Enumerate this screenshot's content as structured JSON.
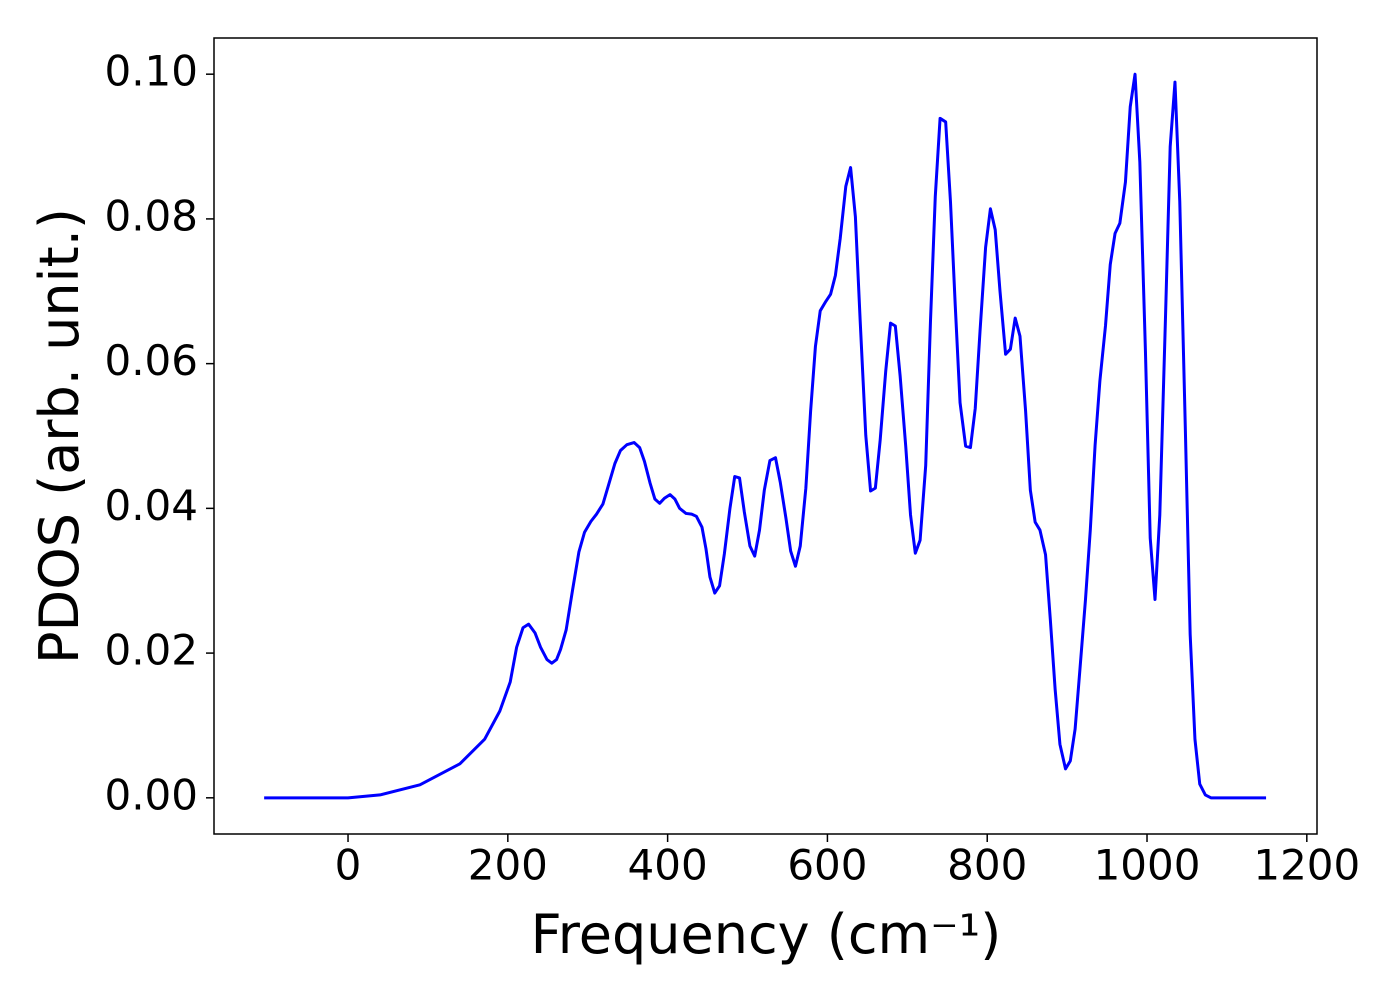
{
  "chart_data": {
    "type": "line",
    "xlabel": "Frequency (cm⁻¹)",
    "ylabel": "PDOS (arb. unit.)",
    "xlim": [
      -167.75,
      1212.75
    ],
    "ylim": [
      -0.005,
      0.105
    ],
    "xticks": [
      0,
      200,
      400,
      600,
      800,
      1000,
      1200
    ],
    "yticks": [
      {
        "value": 0,
        "label": "0.00"
      },
      {
        "value": 0.02,
        "label": "0.02"
      },
      {
        "value": 0.04,
        "label": "0.04"
      },
      {
        "value": 0.06,
        "label": "0.06"
      },
      {
        "value": 0.08,
        "label": "0.08"
      },
      {
        "value": 0.1,
        "label": "0.10"
      }
    ],
    "grid": false,
    "series": [
      {
        "color": "#0000ff",
        "x": [
          -105,
          0,
          40,
          90,
          140,
          171,
          190,
          203,
          211,
          219,
          226,
          234,
          241,
          249,
          255,
          261,
          266,
          273,
          281,
          289,
          296,
          304,
          311,
          319,
          326,
          334,
          341,
          349,
          358,
          365,
          371,
          378,
          384,
          390,
          396,
          403,
          409,
          415,
          423,
          430,
          436,
          443,
          448,
          453,
          459,
          465,
          471,
          478,
          484,
          490,
          496,
          503,
          509,
          515,
          521,
          528,
          535,
          541,
          548,
          554,
          560,
          566,
          573,
          579,
          585,
          591,
          598,
          604,
          610,
          616,
          623,
          629,
          635,
          641,
          648,
          654,
          660,
          666,
          673,
          679,
          685,
          691,
          698,
          704,
          710,
          716,
          723,
          729,
          735,
          741,
          748,
          754,
          760,
          766,
          773,
          779,
          785,
          791,
          798,
          804,
          810,
          816,
          823,
          829,
          835,
          841,
          848,
          854,
          860,
          866,
          873,
          879,
          885,
          891,
          898,
          904,
          910,
          916,
          923,
          929,
          935,
          941,
          948,
          954,
          960,
          966,
          973,
          979,
          985,
          991,
          998,
          1004,
          1010,
          1016,
          1023,
          1029,
          1035,
          1041,
          1048,
          1054,
          1060,
          1066,
          1073,
          1080,
          1149
        ],
        "values": [
          0,
          0,
          0.0004,
          0.0018,
          0.0047,
          0.0081,
          0.012,
          0.016,
          0.0208,
          0.0235,
          0.024,
          0.0228,
          0.0208,
          0.0191,
          0.0186,
          0.0191,
          0.0205,
          0.0232,
          0.0287,
          0.034,
          0.0367,
          0.0382,
          0.0392,
          0.0406,
          0.0432,
          0.0462,
          0.048,
          0.0488,
          0.0491,
          0.0484,
          0.0465,
          0.0435,
          0.0413,
          0.0407,
          0.0414,
          0.0419,
          0.0413,
          0.04,
          0.0393,
          0.0392,
          0.0389,
          0.0374,
          0.0344,
          0.0305,
          0.0283,
          0.0293,
          0.0337,
          0.04,
          0.0444,
          0.0442,
          0.0395,
          0.0348,
          0.0334,
          0.037,
          0.0425,
          0.0466,
          0.047,
          0.0436,
          0.0387,
          0.0341,
          0.032,
          0.0348,
          0.0428,
          0.0535,
          0.0624,
          0.0673,
          0.0686,
          0.0696,
          0.0722,
          0.0773,
          0.0845,
          0.0871,
          0.0803,
          0.0659,
          0.0501,
          0.0424,
          0.0428,
          0.0494,
          0.059,
          0.0656,
          0.0652,
          0.0583,
          0.0486,
          0.0391,
          0.0338,
          0.0356,
          0.0459,
          0.0659,
          0.0831,
          0.0939,
          0.0934,
          0.0824,
          0.068,
          0.0546,
          0.0486,
          0.0484,
          0.0538,
          0.0645,
          0.0761,
          0.0814,
          0.0785,
          0.07,
          0.0613,
          0.062,
          0.0663,
          0.0638,
          0.0535,
          0.0425,
          0.0381,
          0.037,
          0.0336,
          0.0246,
          0.015,
          0.0074,
          0.004,
          0.0051,
          0.0095,
          0.0177,
          0.0274,
          0.037,
          0.0487,
          0.0576,
          0.0652,
          0.0737,
          0.078,
          0.0794,
          0.0851,
          0.0955,
          0.1,
          0.0879,
          0.0618,
          0.0359,
          0.0274,
          0.0391,
          0.0659,
          0.09,
          0.0989,
          0.0824,
          0.0508,
          0.0226,
          0.0081,
          0.0019,
          0.0004,
          0,
          0
        ]
      }
    ]
  }
}
